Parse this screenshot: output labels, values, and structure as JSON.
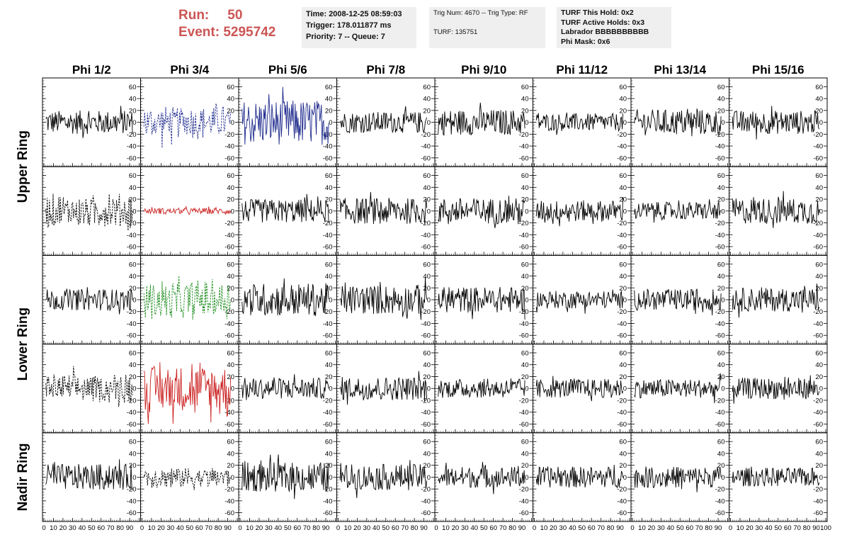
{
  "header": {
    "run_label": "Run:",
    "run_value": "50",
    "event_label": "Event:",
    "event_value": "5295742",
    "time_text": "Time: 2008-12-25 08:59:03",
    "trigger_text": "Trigger: 178.011877 ms",
    "priority_text": "Priority: 7 -- Queue: 7",
    "trig_num_text": "Trig Num: 4670 -- Trig Type: RF",
    "turf_text": "TURF: 135751",
    "turf_this_hold_text": "TURF This Hold: 0x2",
    "turf_active_holds_text": "TURF Active Holds: 0x3",
    "labrador_text": "Labrador BBBBBBBBBB",
    "phi_mask_text": "Phi Mask: 0x6"
  },
  "chart_data": {
    "type": "line",
    "columns": [
      "Phi 1/2",
      "Phi 3/4",
      "Phi 5/6",
      "Phi 7/8",
      "Phi 9/10",
      "Phi 11/12",
      "Phi 13/14",
      "Phi 15/16"
    ],
    "ring_labels": [
      {
        "text": "Upper Ring",
        "rows": [
          0,
          1
        ]
      },
      {
        "text": "Lower Ring",
        "rows": [
          2,
          3
        ]
      },
      {
        "text": "Nadir Ring",
        "rows": [
          4,
          4
        ]
      }
    ],
    "rows": 5,
    "xlim": [
      0,
      100
    ],
    "ylim": [
      -70,
      70
    ],
    "y_ticks": [
      -60,
      -40,
      -20,
      0,
      20,
      40,
      60
    ],
    "x_tick_labels": [
      "0",
      "10",
      "20",
      "30",
      "40",
      "50",
      "60",
      "70",
      "80",
      "90",
      "100"
    ],
    "samples": 120,
    "grid": false,
    "colors": {
      "default": "#000000",
      "blue": "#1e2a8c",
      "red": "#cc2222",
      "green": "#1a8a1a"
    },
    "panels": [
      {
        "row": 0,
        "col": 0,
        "amp": 20,
        "color": "default",
        "style": "solid"
      },
      {
        "row": 0,
        "col": 1,
        "amp": 30,
        "color": "blue",
        "style": "dashed"
      },
      {
        "row": 0,
        "col": 2,
        "amp": 38,
        "color": "blue",
        "style": "solid"
      },
      {
        "row": 0,
        "col": 3,
        "amp": 18,
        "color": "default",
        "style": "solid"
      },
      {
        "row": 0,
        "col": 4,
        "amp": 22,
        "color": "default",
        "style": "solid"
      },
      {
        "row": 0,
        "col": 5,
        "amp": 15,
        "color": "default",
        "style": "solid"
      },
      {
        "row": 0,
        "col": 6,
        "amp": 22,
        "color": "default",
        "style": "solid"
      },
      {
        "row": 0,
        "col": 7,
        "amp": 20,
        "color": "default",
        "style": "solid"
      },
      {
        "row": 1,
        "col": 0,
        "amp": 30,
        "color": "default",
        "style": "dashed"
      },
      {
        "row": 1,
        "col": 1,
        "amp": 5,
        "color": "red",
        "style": "solid"
      },
      {
        "row": 1,
        "col": 2,
        "amp": 20,
        "color": "default",
        "style": "solid"
      },
      {
        "row": 1,
        "col": 3,
        "amp": 22,
        "color": "default",
        "style": "solid"
      },
      {
        "row": 1,
        "col": 4,
        "amp": 22,
        "color": "default",
        "style": "solid"
      },
      {
        "row": 1,
        "col": 5,
        "amp": 18,
        "color": "default",
        "style": "solid"
      },
      {
        "row": 1,
        "col": 6,
        "amp": 15,
        "color": "default",
        "style": "solid"
      },
      {
        "row": 1,
        "col": 7,
        "amp": 22,
        "color": "default",
        "style": "solid"
      },
      {
        "row": 2,
        "col": 0,
        "amp": 18,
        "color": "default",
        "style": "solid"
      },
      {
        "row": 2,
        "col": 1,
        "amp": 35,
        "color": "green",
        "style": "dashed"
      },
      {
        "row": 2,
        "col": 2,
        "amp": 28,
        "color": "default",
        "style": "solid"
      },
      {
        "row": 2,
        "col": 3,
        "amp": 25,
        "color": "default",
        "style": "solid"
      },
      {
        "row": 2,
        "col": 4,
        "amp": 22,
        "color": "default",
        "style": "solid"
      },
      {
        "row": 2,
        "col": 5,
        "amp": 15,
        "color": "default",
        "style": "solid"
      },
      {
        "row": 2,
        "col": 6,
        "amp": 18,
        "color": "default",
        "style": "solid"
      },
      {
        "row": 2,
        "col": 7,
        "amp": 20,
        "color": "default",
        "style": "solid"
      },
      {
        "row": 3,
        "col": 0,
        "amp": 25,
        "color": "default",
        "style": "dashed"
      },
      {
        "row": 3,
        "col": 1,
        "amp": 38,
        "color": "red",
        "style": "solid"
      },
      {
        "row": 3,
        "col": 2,
        "amp": 18,
        "color": "default",
        "style": "solid"
      },
      {
        "row": 3,
        "col": 3,
        "amp": 20,
        "color": "default",
        "style": "solid"
      },
      {
        "row": 3,
        "col": 4,
        "amp": 16,
        "color": "default",
        "style": "solid"
      },
      {
        "row": 3,
        "col": 5,
        "amp": 16,
        "color": "default",
        "style": "solid"
      },
      {
        "row": 3,
        "col": 6,
        "amp": 16,
        "color": "default",
        "style": "solid"
      },
      {
        "row": 3,
        "col": 7,
        "amp": 18,
        "color": "default",
        "style": "solid"
      },
      {
        "row": 4,
        "col": 0,
        "amp": 22,
        "color": "default",
        "style": "solid"
      },
      {
        "row": 4,
        "col": 1,
        "amp": 20,
        "color": "default",
        "style": "dashed"
      },
      {
        "row": 4,
        "col": 2,
        "amp": 25,
        "color": "default",
        "style": "solid"
      },
      {
        "row": 4,
        "col": 3,
        "amp": 22,
        "color": "default",
        "style": "solid"
      },
      {
        "row": 4,
        "col": 4,
        "amp": 18,
        "color": "default",
        "style": "solid"
      },
      {
        "row": 4,
        "col": 5,
        "amp": 18,
        "color": "default",
        "style": "solid"
      },
      {
        "row": 4,
        "col": 6,
        "amp": 18,
        "color": "default",
        "style": "solid"
      },
      {
        "row": 4,
        "col": 7,
        "amp": 16,
        "color": "default",
        "style": "solid"
      }
    ]
  }
}
